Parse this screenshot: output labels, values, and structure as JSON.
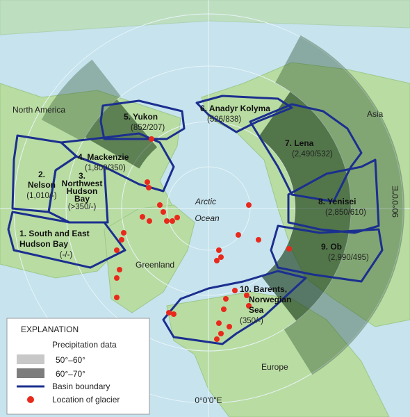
{
  "map": {
    "labels": {
      "north_america": "North America",
      "asia": "Asia",
      "greenland": "Greenland",
      "europe": "Europe",
      "arctic": "Arctic",
      "ocean": "Ocean",
      "lon_90": "90°0'0\"E",
      "lon_0": "0°0'0\"E"
    },
    "basins": [
      {
        "name_lines": [
          "1. South and East",
          "Hudson Bay"
        ],
        "stats": "(-/-)"
      },
      {
        "name_lines": [
          "2.",
          "Nelson"
        ],
        "stats": "(1,010/-)"
      },
      {
        "name_lines": [
          "3.",
          "Northwest",
          "Hudson",
          "Bay"
        ],
        "stats": "(>350/-)"
      },
      {
        "name_lines": [
          "4. Mackenzie"
        ],
        "stats": "(1,800/350)"
      },
      {
        "name_lines": [
          "5. Yukon"
        ],
        "stats": "(852/207)"
      },
      {
        "name_lines": [
          "6. Anadyr Kolyma"
        ],
        "stats": "(526/838)"
      },
      {
        "name_lines": [
          "7. Lena"
        ],
        "stats": "(2,490/532)"
      },
      {
        "name_lines": [
          "8. Yenisei"
        ],
        "stats": "(2,850/610)"
      },
      {
        "name_lines": [
          "9. Ob"
        ],
        "stats": "(2,990/495)"
      },
      {
        "name_lines": [
          "10. Barents,",
          "Norwegian",
          "Sea"
        ],
        "stats": "(350/-)"
      }
    ],
    "legend": {
      "title": "EXPLANATION",
      "precip_title": "Precipitation data",
      "items": [
        "50°–60°",
        "60°–70°",
        "Basin boundary",
        "Location of glacier"
      ]
    }
  }
}
